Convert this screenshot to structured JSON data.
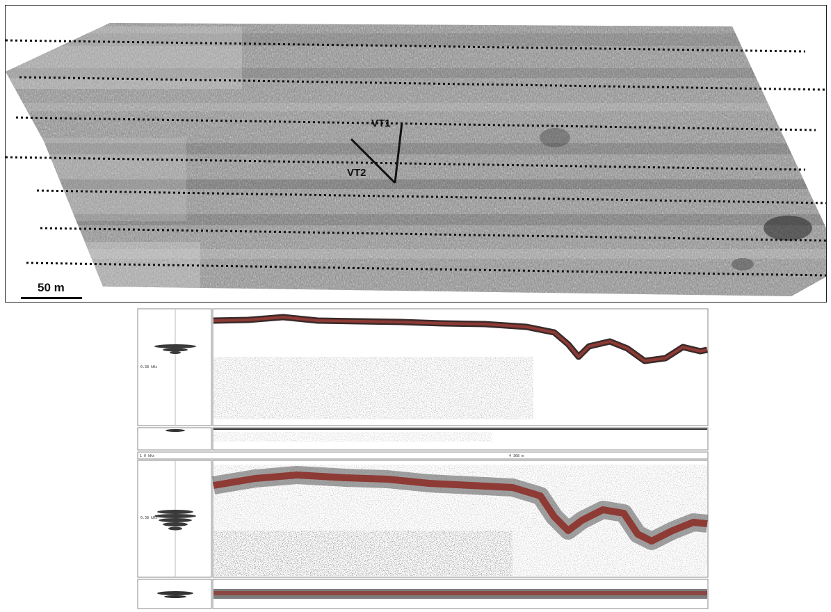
{
  "mosaic": {
    "track_labels": [
      "VT1",
      "VT2"
    ],
    "scale_label": "50 m",
    "surveyline_count": 7
  },
  "echogram": {
    "upper": {
      "channel_label": "0.38 kHz"
    },
    "lower": {
      "channel_label": "0.38 kHz"
    },
    "divider_left": "1 0 kHz",
    "divider_center": "4 368 m"
  },
  "colors": {
    "echo_red": "#8e3a35",
    "mosaic_gray": "#8d8d8d"
  }
}
